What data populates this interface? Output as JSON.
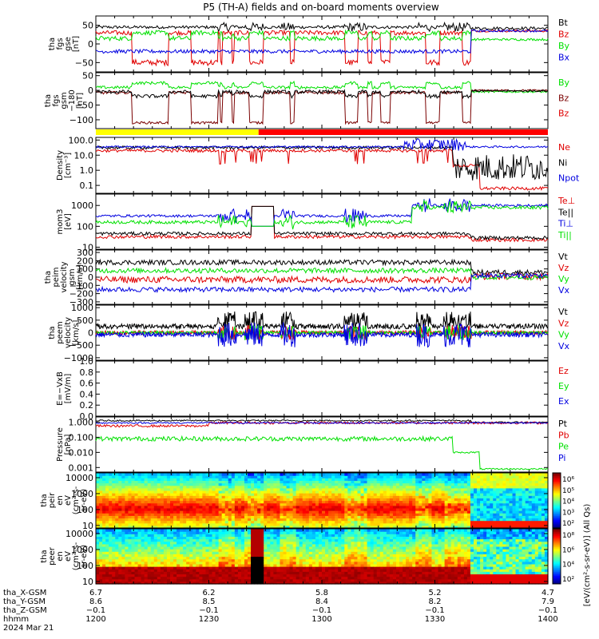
{
  "title": "P5 (TH-A) fields and on-board moments overview",
  "date_label": "2024 Mar 21",
  "colors": {
    "black": "#000000",
    "red": "#e00000",
    "green": "#00e000",
    "blue": "#0000e0",
    "darkred": "#7a0000",
    "bar_yellow": "#ffff00",
    "bar_red": "#ff0000"
  },
  "chart_data": [
    {
      "id": "fgs_gse",
      "type": "line",
      "ylabel": [
        "tha",
        "fgs",
        "gse",
        "[nT]"
      ],
      "ylim": [
        -75,
        75
      ],
      "yticks": [
        "50",
        "0",
        "−50"
      ],
      "ytick_values": [
        50,
        0,
        -50
      ],
      "series": [
        {
          "name": "Bt",
          "color": "#000000"
        },
        {
          "name": "Bz",
          "color": "#e00000"
        },
        {
          "name": "By",
          "color": "#00e000"
        },
        {
          "name": "Bx",
          "color": "#0000e0"
        }
      ]
    },
    {
      "id": "fgs_gsm",
      "type": "line",
      "ylabel": [
        "tha",
        "fgs",
        "gsm",
        "−180",
        "[nT]"
      ],
      "ylim": [
        -130,
        60
      ],
      "yticks": [
        "50",
        "0",
        "−50",
        "−100"
      ],
      "ytick_values": [
        50,
        0,
        -50,
        -100
      ],
      "series": [
        {
          "name": "By",
          "color": "#00e000"
        },
        {
          "name": "Bz",
          "color": "#7a0000"
        },
        {
          "name": "Bz",
          "color": "#e00000"
        }
      ]
    },
    {
      "id": "density",
      "type": "line",
      "scale": "log",
      "ylabel": [
        "Density",
        "[cm⁻³]"
      ],
      "ylim": [
        0.03,
        150
      ],
      "yticks": [
        "100.0",
        "10.0",
        "1.0",
        "0.1"
      ],
      "ytick_values": [
        100,
        10,
        1,
        0.1
      ],
      "series": [
        {
          "name": "Ne",
          "color": "#e00000"
        },
        {
          "name": "Ni",
          "color": "#000000"
        },
        {
          "name": "Npot",
          "color": "#0000e0"
        }
      ]
    },
    {
      "id": "mom_temp",
      "type": "line",
      "scale": "log",
      "ylabel": [
        "mom3",
        "[eV]"
      ],
      "ylim": [
        8,
        3500
      ],
      "yticks": [
        "1000",
        "100",
        "10"
      ],
      "ytick_values": [
        1000,
        100,
        10
      ],
      "series": [
        {
          "name": "Te⊥",
          "color": "#e00000"
        },
        {
          "name": "Te||",
          "color": "#000000"
        },
        {
          "name": "Ti⊥",
          "color": "#0000e0"
        },
        {
          "name": "Ti||",
          "color": "#00e000"
        }
      ]
    },
    {
      "id": "peim_velocity",
      "type": "line",
      "ylabel": [
        "tha",
        "peim",
        "velocity",
        "gsm",
        "[km/s]"
      ],
      "ylim": [
        -330,
        330
      ],
      "yticks": [
        "300",
        "200",
        "100",
        "0",
        "−100",
        "−200",
        "−300"
      ],
      "ytick_values": [
        300,
        200,
        100,
        0,
        -100,
        -200,
        -300
      ],
      "series": [
        {
          "name": "Vt",
          "color": "#000000"
        },
        {
          "name": "Vz",
          "color": "#e00000"
        },
        {
          "name": "Vy",
          "color": "#00e000"
        },
        {
          "name": "Vx",
          "color": "#0000e0"
        }
      ]
    },
    {
      "id": "peem_velocity",
      "type": "line",
      "ylabel": [
        "tha",
        "peem",
        "velocity",
        "[km/s]"
      ],
      "ylim": [
        -1100,
        1100
      ],
      "yticks": [
        "1000",
        "500",
        "0",
        "−500",
        "−1000"
      ],
      "ytick_values": [
        1000,
        500,
        0,
        -500,
        -1000
      ],
      "series": [
        {
          "name": "Vt",
          "color": "#000000"
        },
        {
          "name": "Vz",
          "color": "#e00000"
        },
        {
          "name": "Vy",
          "color": "#00e000"
        },
        {
          "name": "Vx",
          "color": "#0000e0"
        }
      ]
    },
    {
      "id": "efield",
      "type": "line",
      "ylabel": [
        "E=−VxB",
        "[mV/m]"
      ],
      "ylim": [
        0,
        1.0
      ],
      "yticks": [
        "1.0",
        "0.8",
        "0.6",
        "0.4",
        "0.2",
        "0.0"
      ],
      "ytick_values": [
        1.0,
        0.8,
        0.6,
        0.4,
        0.2,
        0.0
      ],
      "series": [
        {
          "name": "Ez",
          "color": "#e00000"
        },
        {
          "name": "Ey",
          "color": "#00e000"
        },
        {
          "name": "Ex",
          "color": "#0000e0"
        }
      ]
    },
    {
      "id": "pressure",
      "type": "line",
      "scale": "log",
      "ylabel": [
        "Pressure",
        "[nPa]"
      ],
      "ylim": [
        0.0005,
        2.2
      ],
      "yticks": [
        "1.000",
        "0.100",
        "0.010",
        "0.001"
      ],
      "ytick_values": [
        1,
        0.1,
        0.01,
        0.001
      ],
      "series": [
        {
          "name": "Pt",
          "color": "#000000"
        },
        {
          "name": "Pb",
          "color": "#e00000"
        },
        {
          "name": "Pe",
          "color": "#00e000"
        },
        {
          "name": "Pi",
          "color": "#0000e0"
        }
      ]
    },
    {
      "id": "peir_spectrogram",
      "type": "heatmap",
      "scale": "log",
      "ylabel": [
        "tha",
        "peir",
        "en",
        "eV",
        "(cm²-s-",
        "sr-eV)"
      ],
      "ylim": [
        7,
        20000
      ],
      "yticks": [
        "10000",
        "1000",
        "100",
        "10"
      ],
      "ytick_values": [
        10000,
        1000,
        100,
        10
      ],
      "colorbar_ticks": [
        "10⁶",
        "10⁵",
        "10⁴",
        "10³",
        "10²"
      ]
    },
    {
      "id": "peer_spectrogram",
      "type": "heatmap",
      "scale": "log",
      "ylabel": [
        "tha",
        "peer",
        "en",
        "eV",
        "(cm²-s-",
        "sr-eV)"
      ],
      "ylim": [
        7,
        20000
      ],
      "yticks": [
        "10000",
        "1000",
        "100",
        "10"
      ],
      "ytick_values": [
        10000,
        1000,
        100,
        10
      ],
      "colorbar_ticks": [
        "10⁸",
        "10⁶",
        "10⁴",
        "10²"
      ],
      "colorbar_label": "[eV/(cm²-s-sr-eV)] (All Qs)"
    }
  ],
  "x_axis": {
    "row_labels": [
      "tha_X-GSM",
      "tha_Y-GSM",
      "tha_Z-GSM",
      "hhmm"
    ],
    "ticks": [
      {
        "time": "1200",
        "x": "6.7",
        "y": "8.6",
        "z": "−0.1"
      },
      {
        "time": "1230",
        "x": "6.2",
        "y": "8.5",
        "z": "−0.1"
      },
      {
        "time": "1300",
        "x": "5.8",
        "y": "8.4",
        "z": "−0.1"
      },
      {
        "time": "1330",
        "x": "5.2",
        "y": "8.2",
        "z": "−0.1"
      },
      {
        "time": "1400",
        "x": "4.7",
        "y": "7.9",
        "z": "−0.1"
      }
    ]
  }
}
